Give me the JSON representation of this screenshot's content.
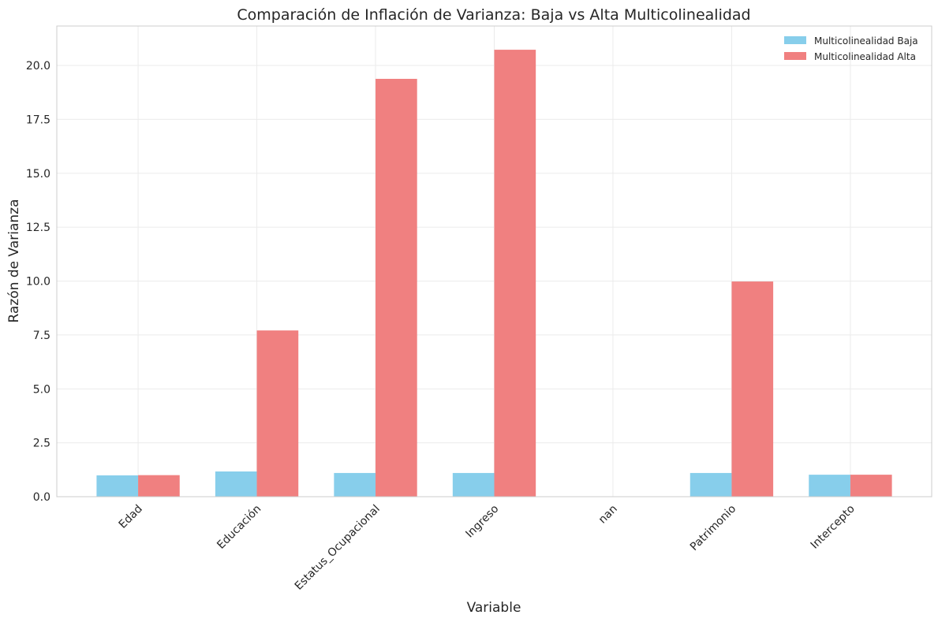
{
  "chart_data": {
    "type": "bar",
    "title": "Comparación de Inflación de Varianza: Baja vs Alta Multicolinealidad",
    "xlabel": "Variable",
    "ylabel": "Razón de Varianza",
    "categories": [
      "Edad",
      "Educación",
      "Estatus_Ocupacional",
      "Ingreso",
      "nan",
      "Patrimonio",
      "Intercepto"
    ],
    "series": [
      {
        "name": "Multicolinealidad Baja",
        "color": "#87CEEB",
        "values": [
          0.99,
          1.17,
          1.1,
          1.1,
          null,
          1.1,
          1.02
        ]
      },
      {
        "name": "Multicolinealidad Alta",
        "color": "#F08080",
        "values": [
          1.0,
          7.71,
          19.38,
          20.73,
          null,
          9.98,
          1.02
        ]
      }
    ],
    "ylim": [
      0,
      21.83
    ],
    "yticks": [
      "0.0",
      "2.5",
      "5.0",
      "7.5",
      "10.0",
      "12.5",
      "15.0",
      "17.5",
      "20.0"
    ],
    "grid": true,
    "legend_position": "top-right"
  }
}
